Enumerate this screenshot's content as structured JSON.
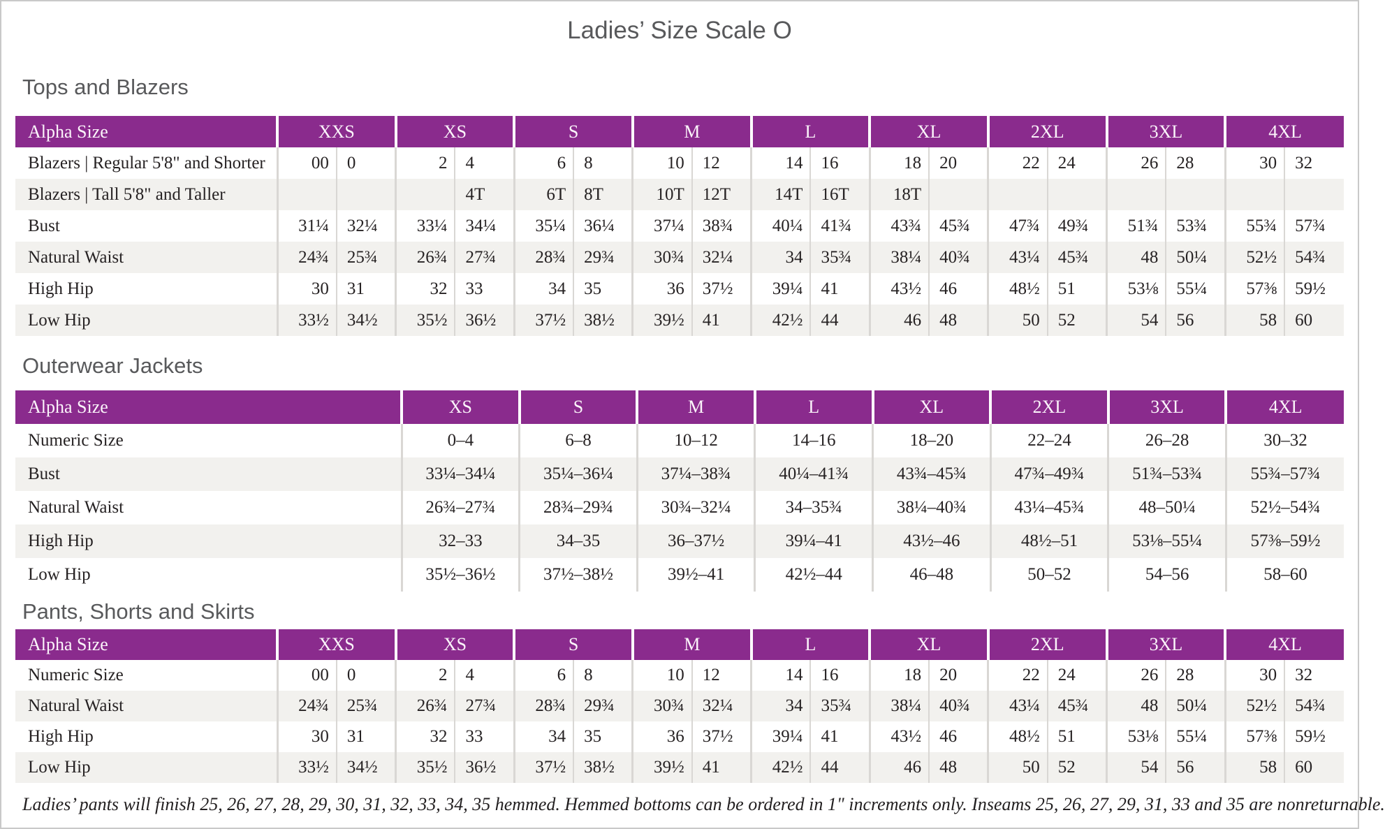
{
  "page": {
    "title": "Ladies’ Size Scale O",
    "footnote": "Ladies’ pants will finish 25, 26, 27, 28, 29, 30, 31, 32, 33, 34, 35 hemmed. Hemmed bottoms can be ordered in 1\" increments only. Inseams 25, 26, 27, 29, 31, 33 and 35 are nonreturnable."
  },
  "colors": {
    "accent_purple": "#8a2b8d",
    "header_text": "#fbf4fa",
    "stripe_gray": "#f2f1ee",
    "divider_gray": "#d9d7d4",
    "heading_gray": "#58595b",
    "body_ink": "#262223",
    "page_border": "#c9c9c9"
  },
  "tables": [
    {
      "title": "Tops and Blazers",
      "corner_label": "Alpha Size",
      "label_col_width": 375,
      "split_columns": true,
      "columns": [
        "XXS",
        "XS",
        "S",
        "M",
        "L",
        "XL",
        "2XL",
        "3XL",
        "4XL"
      ],
      "rows": [
        {
          "label": "Blazers | Regular 5'8\" and Shorter",
          "values": [
            [
              "00",
              "0"
            ],
            [
              "2",
              "4"
            ],
            [
              "6",
              "8"
            ],
            [
              "10",
              "12"
            ],
            [
              "14",
              "16"
            ],
            [
              "18",
              "20"
            ],
            [
              "22",
              "24"
            ],
            [
              "26",
              "28"
            ],
            [
              "30",
              "32"
            ]
          ]
        },
        {
          "label": "Blazers | Tall 5'8\" and Taller",
          "values": [
            [
              "",
              ""
            ],
            [
              "",
              "4T"
            ],
            [
              "6T",
              "8T"
            ],
            [
              "10T",
              "12T"
            ],
            [
              "14T",
              "16T"
            ],
            [
              "18T",
              ""
            ],
            [
              "",
              ""
            ],
            [
              "",
              ""
            ],
            [
              "",
              ""
            ]
          ]
        },
        {
          "label": "Bust",
          "values": [
            [
              "31¼",
              "32¼"
            ],
            [
              "33¼",
              "34¼"
            ],
            [
              "35¼",
              "36¼"
            ],
            [
              "37¼",
              "38¾"
            ],
            [
              "40¼",
              "41¾"
            ],
            [
              "43¾",
              "45¾"
            ],
            [
              "47¾",
              "49¾"
            ],
            [
              "51¾",
              "53¾"
            ],
            [
              "55¾",
              "57¾"
            ]
          ]
        },
        {
          "label": "Natural Waist",
          "values": [
            [
              "24¾",
              "25¾"
            ],
            [
              "26¾",
              "27¾"
            ],
            [
              "28¾",
              "29¾"
            ],
            [
              "30¾",
              "32¼"
            ],
            [
              "34",
              "35¾"
            ],
            [
              "38¼",
              "40¾"
            ],
            [
              "43¼",
              "45¾"
            ],
            [
              "48",
              "50¼"
            ],
            [
              "52½",
              "54¾"
            ]
          ]
        },
        {
          "label": "High Hip",
          "values": [
            [
              "30",
              "31"
            ],
            [
              "32",
              "33"
            ],
            [
              "34",
              "35"
            ],
            [
              "36",
              "37½"
            ],
            [
              "39¼",
              "41"
            ],
            [
              "43½",
              "46"
            ],
            [
              "48½",
              "51"
            ],
            [
              "53⅛",
              "55¼"
            ],
            [
              "57⅜",
              "59½"
            ]
          ]
        },
        {
          "label": "Low Hip",
          "values": [
            [
              "33½",
              "34½"
            ],
            [
              "35½",
              "36½"
            ],
            [
              "37½",
              "38½"
            ],
            [
              "39½",
              "41"
            ],
            [
              "42½",
              "44"
            ],
            [
              "46",
              "48"
            ],
            [
              "50",
              "52"
            ],
            [
              "54",
              "56"
            ],
            [
              "58",
              "60"
            ]
          ]
        }
      ]
    },
    {
      "title": "Outerwear Jackets",
      "corner_label": "Alpha Size",
      "label_col_width": 553,
      "split_columns": false,
      "columns": [
        "XS",
        "S",
        "M",
        "L",
        "XL",
        "2XL",
        "3XL",
        "4XL"
      ],
      "rows": [
        {
          "label": "Numeric Size",
          "values": [
            "0–4",
            "6–8",
            "10–12",
            "14–16",
            "18–20",
            "22–24",
            "26–28",
            "30–32"
          ]
        },
        {
          "label": "Bust",
          "values": [
            "33¼–34¼",
            "35¼–36¼",
            "37¼–38¾",
            "40¼–41¾",
            "43¾–45¾",
            "47¾–49¾",
            "51¾–53¾",
            "55¾–57¾"
          ]
        },
        {
          "label": "Natural Waist",
          "values": [
            "26¾–27¾",
            "28¾–29¾",
            "30¾–32¼",
            "34–35¾",
            "38¼–40¾",
            "43¼–45¾",
            "48–50¼",
            "52½–54¾"
          ]
        },
        {
          "label": "High Hip",
          "values": [
            "32–33",
            "34–35",
            "36–37½",
            "39¼–41",
            "43½–46",
            "48½–51",
            "53⅛–55¼",
            "57⅜–59½"
          ]
        },
        {
          "label": "Low Hip",
          "values": [
            "35½–36½",
            "37½–38½",
            "39½–41",
            "42½–44",
            "46–48",
            "50–52",
            "54–56",
            "58–60"
          ]
        }
      ]
    },
    {
      "title": "Pants, Shorts and Skirts",
      "corner_label": "Alpha Size",
      "label_col_width": 375,
      "split_columns": true,
      "columns": [
        "XXS",
        "XS",
        "S",
        "M",
        "L",
        "XL",
        "2XL",
        "3XL",
        "4XL"
      ],
      "rows": [
        {
          "label": "Numeric Size",
          "values": [
            [
              "00",
              "0"
            ],
            [
              "2",
              "4"
            ],
            [
              "6",
              "8"
            ],
            [
              "10",
              "12"
            ],
            [
              "14",
              "16"
            ],
            [
              "18",
              "20"
            ],
            [
              "22",
              "24"
            ],
            [
              "26",
              "28"
            ],
            [
              "30",
              "32"
            ]
          ]
        },
        {
          "label": "Natural Waist",
          "values": [
            [
              "24¾",
              "25¾"
            ],
            [
              "26¾",
              "27¾"
            ],
            [
              "28¾",
              "29¾"
            ],
            [
              "30¾",
              "32¼"
            ],
            [
              "34",
              "35¾"
            ],
            [
              "38¼",
              "40¾"
            ],
            [
              "43¼",
              "45¾"
            ],
            [
              "48",
              "50¼"
            ],
            [
              "52½",
              "54¾"
            ]
          ]
        },
        {
          "label": "High Hip",
          "values": [
            [
              "30",
              "31"
            ],
            [
              "32",
              "33"
            ],
            [
              "34",
              "35"
            ],
            [
              "36",
              "37½"
            ],
            [
              "39¼",
              "41"
            ],
            [
              "43½",
              "46"
            ],
            [
              "48½",
              "51"
            ],
            [
              "53⅛",
              "55¼"
            ],
            [
              "57⅜",
              "59½"
            ]
          ]
        },
        {
          "label": "Low Hip",
          "values": [
            [
              "33½",
              "34½"
            ],
            [
              "35½",
              "36½"
            ],
            [
              "37½",
              "38½"
            ],
            [
              "39½",
              "41"
            ],
            [
              "42½",
              "44"
            ],
            [
              "46",
              "48"
            ],
            [
              "50",
              "52"
            ],
            [
              "54",
              "56"
            ],
            [
              "58",
              "60"
            ]
          ]
        }
      ]
    }
  ]
}
